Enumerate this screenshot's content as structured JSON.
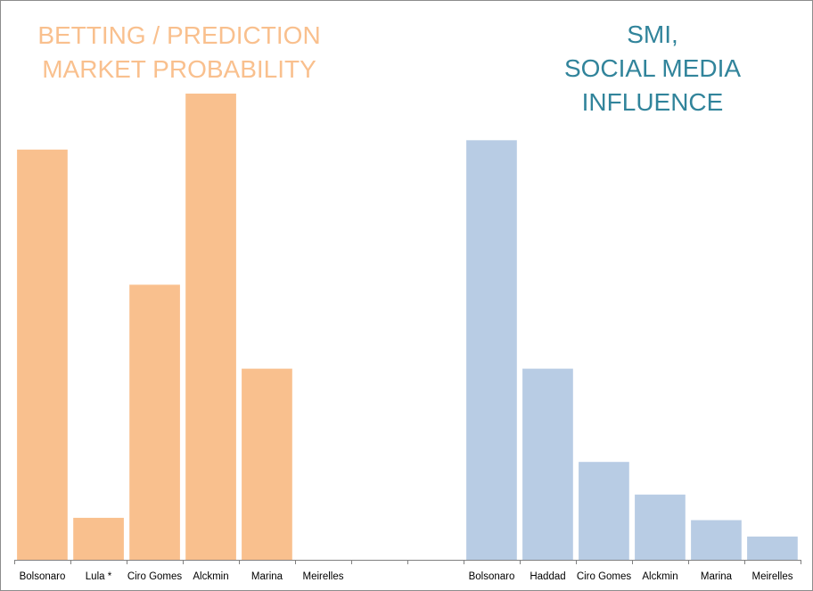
{
  "chart_data": {
    "type": "bar",
    "categories": [
      "Bolsonaro",
      "Lula *",
      "Ciro Gomes",
      "Alckmin",
      "Marina",
      "Meirelles",
      "",
      "",
      "Bolsonaro",
      "Haddad",
      "Ciro Gomes",
      "Alckmin",
      "Marina",
      "Meirelles"
    ],
    "ylim": [
      0,
      100
    ],
    "grid": false,
    "groups": [
      {
        "title_lines": [
          "BETTING / PREDICTION",
          "MARKET PROBABILITY"
        ],
        "color": "#f9c08e",
        "categories": [
          "Bolsonaro",
          "Lula *",
          "Ciro Gomes",
          "Alckmin",
          "Marina",
          "Meirelles"
        ],
        "values": [
          88,
          9,
          59,
          100,
          41,
          0
        ]
      },
      {
        "title_lines": [
          "SMI,",
          "SOCIAL MEDIA",
          "INFLUENCE"
        ],
        "color": "#b8cce4",
        "categories": [
          "Bolsonaro",
          "Haddad",
          "Ciro Gomes",
          "Alckmin",
          "Marina",
          "Meirelles"
        ],
        "values": [
          90,
          41,
          21,
          14,
          8.5,
          5
        ]
      }
    ]
  }
}
